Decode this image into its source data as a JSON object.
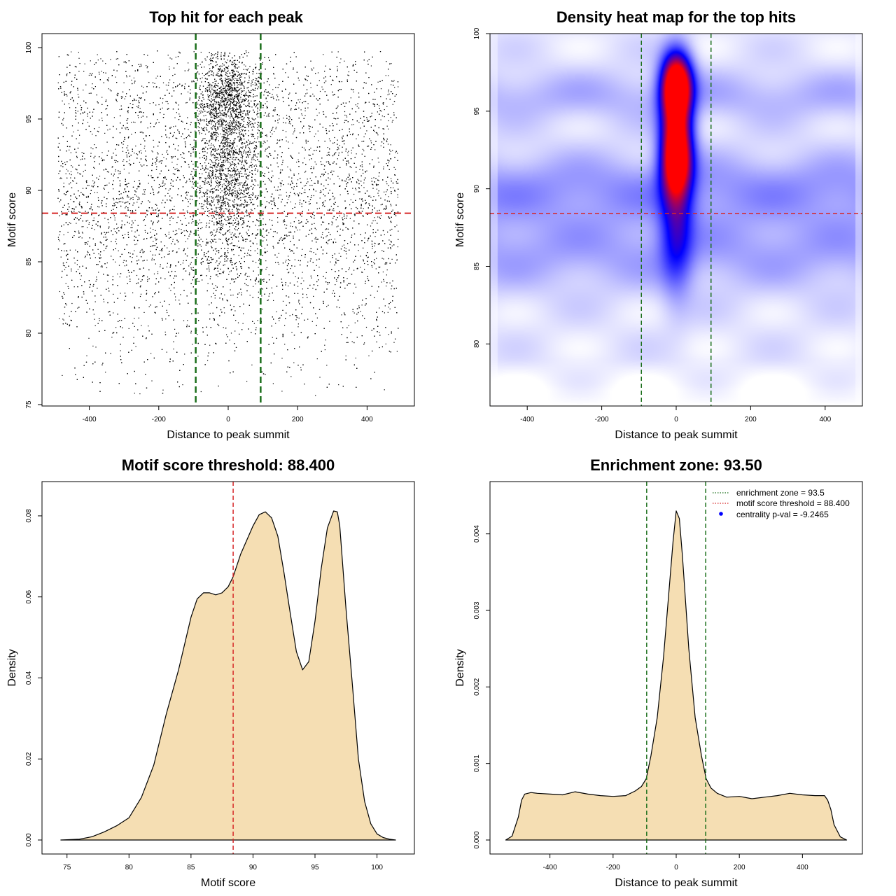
{
  "chart_data": [
    {
      "panel": "scatter",
      "type": "scatter",
      "title": "Top hit for each peak",
      "xlabel": "Distance to peak summit",
      "ylabel": "Motif score",
      "xlim": [
        -500,
        500
      ],
      "ylim": [
        75,
        100
      ],
      "xticks": [
        -400,
        -200,
        0,
        200,
        400
      ],
      "yticks": [
        75,
        80,
        85,
        90,
        95,
        100
      ],
      "point_color": "#000000",
      "hline": {
        "y": 88.4,
        "color": "#d62728",
        "label": "motif score threshold"
      },
      "vlines": [
        {
          "x": -93.5,
          "color": "#1a6e1a"
        },
        {
          "x": 93.5,
          "color": "#1a6e1a"
        }
      ],
      "distribution": {
        "background": {
          "x_range": [
            -490,
            490
          ],
          "score_peaks": [
            {
              "mean": 86,
              "sd": 4.5
            },
            {
              "mean": 91,
              "sd": 3
            },
            {
              "mean": 96.5,
              "sd": 1.8
            }
          ]
        },
        "central": {
          "x_mean": 0,
          "x_sd": 45,
          "score_peaks": [
            {
              "mean": 96.5,
              "sd": 1.5
            },
            {
              "mean": 92,
              "sd": 2
            },
            {
              "mean": 88,
              "sd": 2.5
            }
          ]
        }
      }
    },
    {
      "panel": "heatmap",
      "type": "heatmap",
      "title": "Density heat map for the top hits",
      "xlabel": "Distance to peak summit",
      "ylabel": "Motif score",
      "xlim": [
        -500,
        500
      ],
      "ylim": [
        76,
        100
      ],
      "xticks": [
        -400,
        -200,
        0,
        200,
        400
      ],
      "yticks": [
        80,
        85,
        90,
        95,
        100
      ],
      "color_scale": [
        "#ffffff",
        "#0000ff",
        "#ff0000"
      ],
      "hotspots": [
        {
          "x": 0,
          "y": 96.8,
          "sx": 28,
          "sy": 1.4,
          "weight": 1.0
        },
        {
          "x": 0,
          "y": 92.0,
          "sx": 28,
          "sy": 1.6,
          "weight": 0.85
        },
        {
          "x": 0,
          "y": 94.5,
          "sx": 28,
          "sy": 1.5,
          "weight": 0.45
        },
        {
          "x": 0,
          "y": 88.0,
          "sx": 30,
          "sy": 3.0,
          "weight": 0.35
        }
      ],
      "hline": {
        "y": 88.4,
        "color": "#d62728"
      },
      "vlines": [
        {
          "x": -93.5,
          "color": "#1a6e1a"
        },
        {
          "x": 93.5,
          "color": "#1a6e1a"
        }
      ]
    },
    {
      "panel": "score-density",
      "type": "area",
      "title": "Motif score threshold: 88.400",
      "xlabel": "Motif score",
      "ylabel": "Density",
      "xlim": [
        74,
        102
      ],
      "ylim": [
        0,
        0.085
      ],
      "xticks": [
        75,
        80,
        85,
        90,
        95,
        100
      ],
      "yticks": [
        0.0,
        0.02,
        0.04,
        0.06,
        0.08
      ],
      "ytick_labels": [
        "0.00",
        "0.02",
        "0.04",
        "0.06",
        "0.08"
      ],
      "fill_color": "#f5deb3",
      "x": [
        74.5,
        76,
        77,
        78,
        79,
        80,
        81,
        82,
        83,
        84,
        85,
        85.5,
        86,
        86.5,
        87,
        87.5,
        88,
        88.4,
        89,
        90,
        90.5,
        91,
        91.5,
        92,
        92.5,
        93,
        93.5,
        94,
        94.5,
        95,
        95.5,
        96,
        96.5,
        96.8,
        97,
        97.5,
        98,
        98.5,
        99,
        99.5,
        100,
        100.5,
        101,
        101.5
      ],
      "y": [
        0.0,
        0.0002,
        0.0008,
        0.002,
        0.0035,
        0.0055,
        0.0105,
        0.0185,
        0.031,
        0.042,
        0.055,
        0.0595,
        0.061,
        0.061,
        0.0605,
        0.061,
        0.0625,
        0.065,
        0.0705,
        0.0775,
        0.0803,
        0.081,
        0.0795,
        0.075,
        0.066,
        0.056,
        0.0465,
        0.042,
        0.044,
        0.054,
        0.067,
        0.077,
        0.0812,
        0.081,
        0.0775,
        0.057,
        0.039,
        0.02,
        0.0095,
        0.004,
        0.0015,
        0.0006,
        0.0002,
        0.0
      ],
      "vline": {
        "x": 88.4,
        "color": "#d62728"
      }
    },
    {
      "panel": "distance-density",
      "type": "area",
      "title": "Enrichment zone: 93.50",
      "xlabel": "Distance to peak summit",
      "ylabel": "Density",
      "xlim": [
        -550,
        550
      ],
      "ylim": [
        0,
        0.0045
      ],
      "xticks": [
        -400,
        -200,
        0,
        200,
        400
      ],
      "yticks": [
        0.0,
        0.001,
        0.002,
        0.003,
        0.004
      ],
      "ytick_labels": [
        "0.000",
        "0.001",
        "0.002",
        "0.003",
        "0.004"
      ],
      "fill_color": "#f5deb3",
      "x": [
        -540,
        -520,
        -500,
        -490,
        -480,
        -460,
        -440,
        -400,
        -360,
        -320,
        -280,
        -240,
        -200,
        -160,
        -130,
        -110,
        -95,
        -80,
        -60,
        -40,
        -20,
        -10,
        0,
        10,
        20,
        40,
        60,
        80,
        95,
        110,
        130,
        160,
        200,
        240,
        280,
        320,
        360,
        400,
        440,
        470,
        480,
        490,
        500,
        520,
        540
      ],
      "y": [
        0.0,
        5e-05,
        0.0003,
        0.00052,
        0.0006,
        0.00062,
        0.00061,
        0.0006,
        0.00059,
        0.00063,
        0.0006,
        0.00058,
        0.00057,
        0.00058,
        0.00064,
        0.0007,
        0.0008,
        0.0011,
        0.0016,
        0.0024,
        0.0034,
        0.0039,
        0.0043,
        0.0042,
        0.0037,
        0.0025,
        0.0016,
        0.0011,
        0.0008,
        0.00068,
        0.00061,
        0.00056,
        0.00057,
        0.00054,
        0.00056,
        0.00058,
        0.00061,
        0.00059,
        0.00058,
        0.00058,
        0.00052,
        0.0004,
        0.0002,
        4e-05,
        0.0
      ],
      "vlines": [
        {
          "x": -93.5,
          "color": "#1a6e1a"
        },
        {
          "x": 93.5,
          "color": "#1a6e1a"
        }
      ],
      "legend": {
        "position": "top-right",
        "items": [
          {
            "label": "enrichment zone = 93.5",
            "color": "#1a6e1a",
            "marker": "dotted-line"
          },
          {
            "label": "motif score threshold = 88.400",
            "color": "#d62728",
            "marker": "dotted-line"
          },
          {
            "label": "centrality p-val = -9.2465",
            "color": "#0000ff",
            "marker": "dot"
          }
        ]
      }
    }
  ]
}
